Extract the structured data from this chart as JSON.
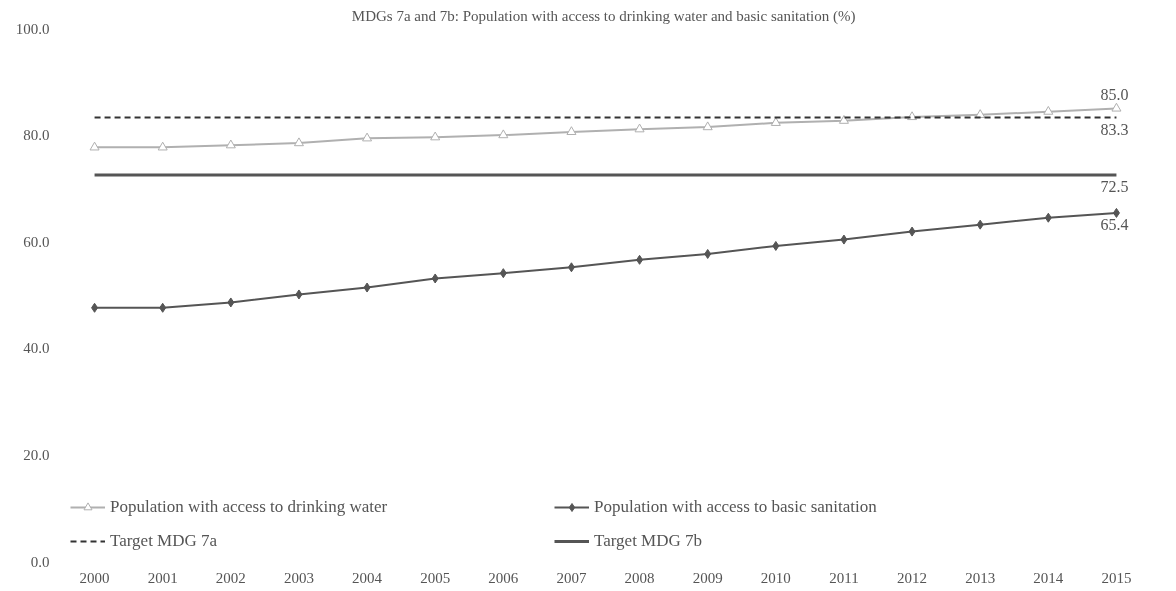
{
  "chart_data": {
    "type": "line",
    "title": "MDGs 7a and 7b: Population with access to drinking water and basic  sanitation (%)",
    "categories": [
      "2000",
      "2001",
      "2002",
      "2003",
      "2004",
      "2005",
      "2006",
      "2007",
      "2008",
      "2009",
      "2010",
      "2011",
      "2012",
      "2013",
      "2014",
      "2015"
    ],
    "series": [
      {
        "name": "Population with access to drinking water",
        "color": "#b0b0b0",
        "marker": "triangle",
        "line_style": "solid",
        "values": [
          77.7,
          77.7,
          78.1,
          78.5,
          79.4,
          79.6,
          80.0,
          80.6,
          81.1,
          81.5,
          82.3,
          82.7,
          83.4,
          83.8,
          84.4,
          85.0
        ],
        "value_labels": [
          null,
          null,
          null,
          null,
          null,
          null,
          null,
          null,
          null,
          null,
          null,
          null,
          null,
          null,
          null,
          "85.0"
        ]
      },
      {
        "name": "Population with access to basic sanitation",
        "color": "#555555",
        "marker": "diamond",
        "line_style": "solid",
        "values": [
          47.6,
          47.6,
          48.6,
          50.1,
          51.4,
          53.1,
          54.1,
          55.2,
          56.6,
          57.7,
          59.2,
          60.4,
          61.9,
          63.2,
          64.5,
          65.4
        ],
        "value_labels": [
          null,
          null,
          null,
          null,
          null,
          null,
          null,
          null,
          null,
          null,
          null,
          null,
          null,
          null,
          null,
          "65.4"
        ]
      },
      {
        "name": "Target MDG 7a",
        "color": "#333333",
        "marker": "none",
        "line_style": "dashed",
        "values": [
          83.3,
          83.3,
          83.3,
          83.3,
          83.3,
          83.3,
          83.3,
          83.3,
          83.3,
          83.3,
          83.3,
          83.3,
          83.3,
          83.3,
          83.3,
          83.3
        ],
        "value_labels": [
          null,
          null,
          null,
          null,
          null,
          null,
          null,
          null,
          null,
          null,
          null,
          null,
          null,
          null,
          null,
          "83.3"
        ]
      },
      {
        "name": "Target MDG 7b",
        "color": "#555555",
        "marker": "none",
        "line_style": "solid",
        "values": [
          72.5,
          72.5,
          72.5,
          72.5,
          72.5,
          72.5,
          72.5,
          72.5,
          72.5,
          72.5,
          72.5,
          72.5,
          72.5,
          72.5,
          72.5,
          72.5
        ],
        "value_labels": [
          null,
          null,
          null,
          null,
          null,
          null,
          null,
          null,
          null,
          null,
          null,
          null,
          null,
          null,
          null,
          "72.5"
        ]
      }
    ],
    "ylim": [
      0,
      100
    ],
    "yticks": [
      {
        "value": 0,
        "label": "0.0"
      },
      {
        "value": 20,
        "label": "20.0"
      },
      {
        "value": 40,
        "label": "40.0"
      },
      {
        "value": 60,
        "label": "60.0"
      },
      {
        "value": 80,
        "label": "80.0"
      },
      {
        "value": 100,
        "label": "100.0"
      }
    ],
    "grid": false,
    "legend": "bottom"
  }
}
